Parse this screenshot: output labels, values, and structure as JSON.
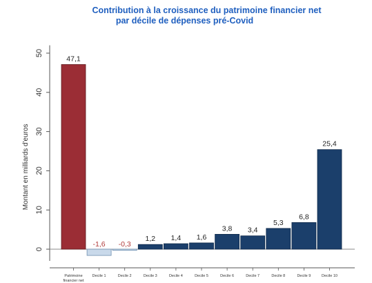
{
  "title_line1": "Contribution à la croissance du patrimoine financier net",
  "title_line2": "par décile de dépenses pré-Covid",
  "chart_data": {
    "type": "bar",
    "ylabel": "Montant en milliards d'euros",
    "ylim": [
      -3,
      52
    ],
    "yticks": [
      0,
      10,
      20,
      30,
      40,
      50
    ],
    "grid": false,
    "categories": [
      [
        "Patrimoine",
        "financier net"
      ],
      [
        "Decile 1"
      ],
      [
        "Decile 2"
      ],
      [
        "Decile 3"
      ],
      [
        "Decile 4"
      ],
      [
        "Decile 5"
      ],
      [
        "Decile 6"
      ],
      [
        "Decile 7"
      ],
      [
        "Decile 8"
      ],
      [
        "Decile 9"
      ],
      [
        "Decile 10"
      ]
    ],
    "values": [
      47.1,
      -1.6,
      -0.3,
      1.2,
      1.4,
      1.6,
      3.8,
      3.4,
      5.3,
      6.8,
      25.4
    ],
    "labels": [
      "47,1",
      "-1,6",
      "-0,3",
      "1,2",
      "1,4",
      "1,6",
      "3,8",
      "3,4",
      "5,3",
      "6,8",
      "25,4"
    ],
    "colors": {
      "total": "#9b2d35",
      "total_stroke": "#5e1a1f",
      "positive": "#1b3f6b",
      "positive_stroke": "#0f2a4a",
      "negative": "#c9d9ea",
      "negative_stroke": "#6f8fb0",
      "negative_label": "#b03a3a"
    }
  }
}
